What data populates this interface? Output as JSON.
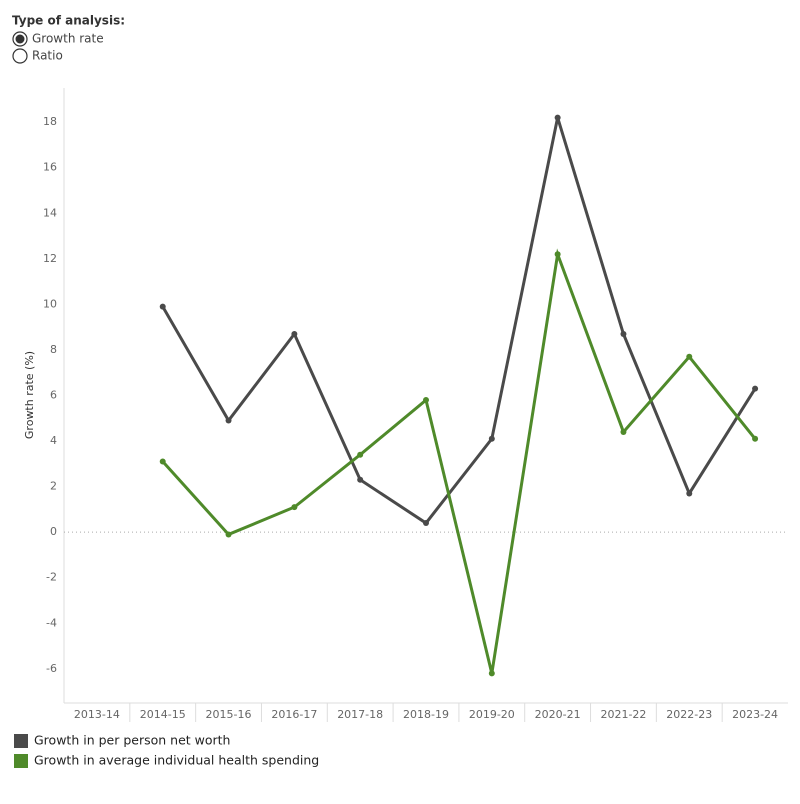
{
  "controls": {
    "label": "Type of analysis:",
    "options": [
      "Growth rate",
      "Ratio"
    ],
    "selected": 0
  },
  "chart_data": {
    "type": "line",
    "ylabel": "Growth rate (%)",
    "categories": [
      "2013-14",
      "2014-15",
      "2015-16",
      "2016-17",
      "2017-18",
      "2018-19",
      "2019-20",
      "2020-21",
      "2021-22",
      "2022-23",
      "2023-24"
    ],
    "series": [
      {
        "name": "Growth in per person net worth",
        "color": "#4a4a4a",
        "values": [
          null,
          9.9,
          4.9,
          8.7,
          2.3,
          0.4,
          4.1,
          18.2,
          8.7,
          1.7,
          6.3
        ]
      },
      {
        "name": "Growth in average individual health spending",
        "color": "#4f8a2a",
        "values": [
          null,
          3.1,
          -0.1,
          1.1,
          3.4,
          5.8,
          -6.2,
          12.2,
          4.4,
          7.7,
          4.1
        ]
      }
    ],
    "ylim": [
      -7.5,
      19.5
    ],
    "yticks": [
      -6,
      -4,
      -2,
      0,
      2,
      4,
      6,
      8,
      10,
      12,
      14,
      16,
      18
    ],
    "grid": false
  }
}
